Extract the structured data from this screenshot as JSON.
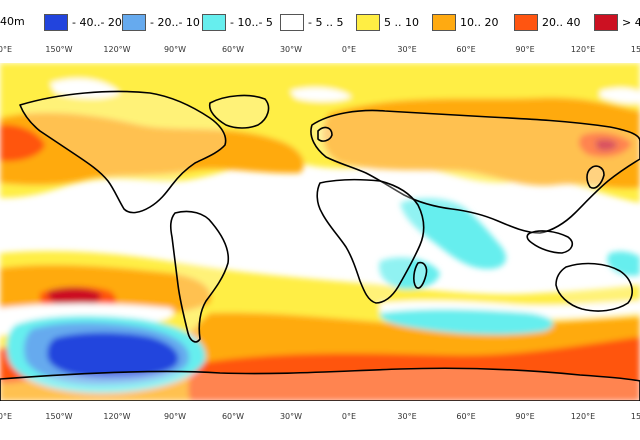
{
  "legend": {
    "variable_label": "40m",
    "items": [
      {
        "label": "- 40..- 20",
        "color": "#2244dd"
      },
      {
        "label": "- 20..- 10",
        "color": "#66aaee"
      },
      {
        "label": "- 10..- 5",
        "color": "#66eeee"
      },
      {
        "label": "- 5 .. 5",
        "color": "#ffffff"
      },
      {
        "label": "5 .. 10",
        "color": "#ffee44"
      },
      {
        "label": "10.. 20",
        "color": "#ffaa11"
      },
      {
        "label": "20.. 40",
        "color": "#ff5511"
      },
      {
        "label": "> 4",
        "color": "#cc1122"
      }
    ]
  },
  "axis": {
    "ticks": [
      "0°E",
      "150°W",
      "120°W",
      "90°W",
      "60°W",
      "30°W",
      "0°E",
      "30°E",
      "60°E",
      "90°E",
      "120°E",
      "15"
    ],
    "ticks_bottom": [
      "0°E",
      "150°W",
      "120°W",
      "90°W",
      "60°W",
      "30°W",
      "0°E",
      "30°E",
      "60°E",
      "90°E",
      "120°E",
      "15"
    ]
  }
}
